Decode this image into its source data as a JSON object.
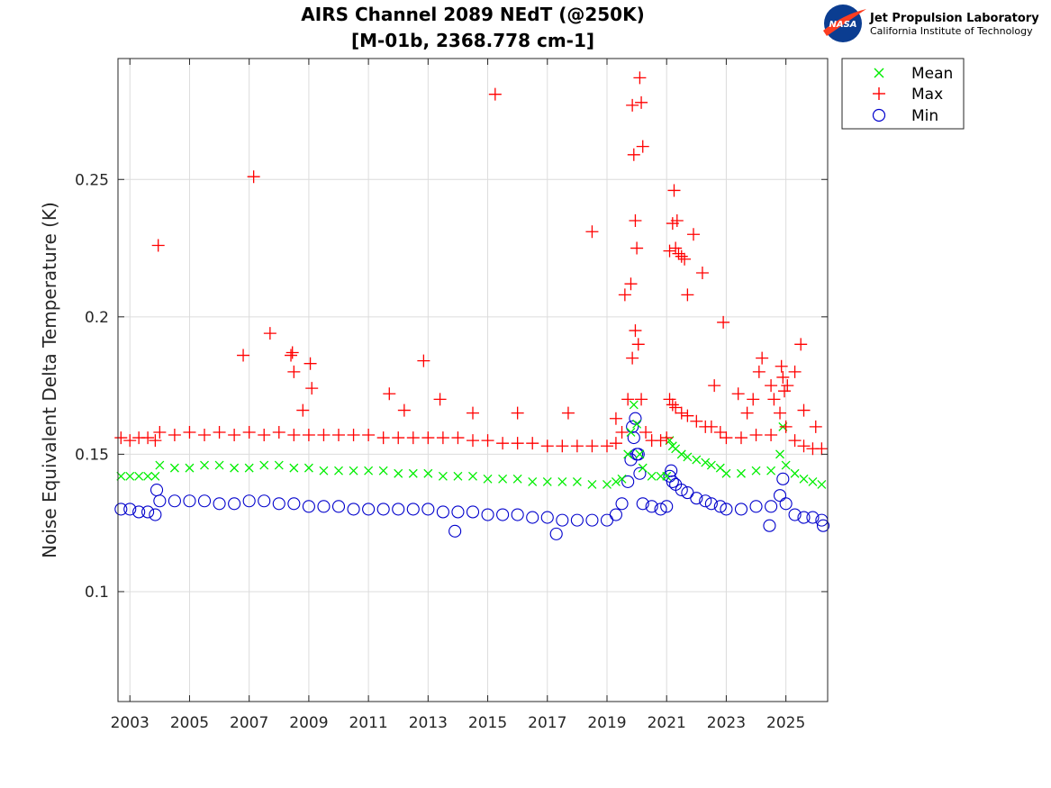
{
  "logo": {
    "name": "Jet Propulsion Laboratory",
    "subtitle": "California Institute of Technology",
    "badge_text": "NASA"
  },
  "chart_data": {
    "type": "scatter",
    "title": "AIRS Channel 2089 NEdT (@250K)",
    "subtitle": "[M-01b, 2368.778 cm-1]",
    "xlabel": "",
    "ylabel": "Noise Equivalent Delta Temperature (K)",
    "xlim": [
      2002.6,
      2026.4
    ],
    "ylim": [
      0.06,
      0.294
    ],
    "x_ticks": [
      2003,
      2005,
      2007,
      2009,
      2011,
      2013,
      2015,
      2017,
      2019,
      2021,
      2023,
      2025
    ],
    "y_ticks": [
      0.1,
      0.15,
      0.2,
      0.25
    ],
    "y_tick_labels": [
      "0.1",
      "0.15",
      "0.2",
      "0.25"
    ],
    "grid": true,
    "legend_position": "outside-top-right",
    "colors": {
      "mean": "#00ee00",
      "max": "#ff0000",
      "min": "#0000cc"
    },
    "series": [
      {
        "name": "Mean",
        "marker": "x",
        "x": [
          2002.7,
          2003.0,
          2003.3,
          2003.6,
          2003.85,
          2004.0,
          2004.5,
          2005.0,
          2005.5,
          2006.0,
          2006.5,
          2007.0,
          2007.5,
          2008.0,
          2008.5,
          2009.0,
          2009.5,
          2010.0,
          2010.5,
          2011.0,
          2011.5,
          2012.0,
          2012.5,
          2013.0,
          2013.5,
          2014.0,
          2014.5,
          2015.0,
          2015.5,
          2016.0,
          2016.5,
          2017.0,
          2017.5,
          2018.0,
          2018.5,
          2019.0,
          2019.3,
          2019.5,
          2019.7,
          2019.8,
          2019.9,
          2020.0,
          2020.1,
          2020.2,
          2020.5,
          2020.8,
          2021.0,
          2021.1,
          2021.2,
          2021.3,
          2021.5,
          2021.7,
          2022.0,
          2022.3,
          2022.5,
          2022.8,
          2023.0,
          2023.5,
          2024.0,
          2024.5,
          2024.8,
          2024.9,
          2025.0,
          2025.3,
          2025.6,
          2025.9,
          2026.2
        ],
        "y": [
          0.142,
          0.142,
          0.142,
          0.142,
          0.142,
          0.146,
          0.145,
          0.145,
          0.146,
          0.146,
          0.145,
          0.145,
          0.146,
          0.146,
          0.145,
          0.145,
          0.144,
          0.144,
          0.144,
          0.144,
          0.144,
          0.143,
          0.143,
          0.143,
          0.142,
          0.142,
          0.142,
          0.141,
          0.141,
          0.141,
          0.14,
          0.14,
          0.14,
          0.14,
          0.139,
          0.139,
          0.14,
          0.141,
          0.15,
          0.158,
          0.168,
          0.161,
          0.15,
          0.145,
          0.142,
          0.142,
          0.142,
          0.155,
          0.153,
          0.152,
          0.15,
          0.149,
          0.148,
          0.147,
          0.146,
          0.145,
          0.143,
          0.143,
          0.144,
          0.144,
          0.15,
          0.16,
          0.146,
          0.143,
          0.141,
          0.14,
          0.139
        ]
      },
      {
        "name": "Max",
        "marker": "+",
        "x": [
          2002.7,
          2003.0,
          2003.3,
          2003.6,
          2003.85,
          2004.0,
          2004.5,
          2005.0,
          2005.5,
          2006.0,
          2006.5,
          2007.0,
          2007.5,
          2008.0,
          2008.5,
          2009.0,
          2009.5,
          2010.0,
          2010.5,
          2011.0,
          2011.5,
          2012.0,
          2012.5,
          2013.0,
          2013.5,
          2014.0,
          2014.5,
          2015.0,
          2015.5,
          2016.0,
          2016.5,
          2017.0,
          2017.5,
          2018.0,
          2018.5,
          2019.0,
          2019.3,
          2019.5,
          2019.7,
          2019.85,
          2019.95,
          2020.05,
          2020.15,
          2020.3,
          2020.5,
          2020.8,
          2021.0,
          2021.1,
          2021.2,
          2021.3,
          2021.5,
          2021.7,
          2022.0,
          2022.3,
          2022.5,
          2022.8,
          2023.0,
          2023.5,
          2024.0,
          2024.5,
          2024.8,
          2024.9,
          2025.0,
          2025.3,
          2025.6,
          2025.9,
          2026.2,
          2003.95,
          2006.8,
          2007.15,
          2007.7,
          2008.4,
          2008.45,
          2008.5,
          2008.8,
          2009.05,
          2009.1,
          2011.7,
          2012.2,
          2012.85,
          2013.4,
          2014.5,
          2015.25,
          2016.0,
          2017.7,
          2018.5,
          2019.3,
          2019.6,
          2019.8,
          2019.85,
          2019.9,
          2019.95,
          2020.0,
          2020.1,
          2020.15,
          2020.2,
          2021.1,
          2021.2,
          2021.25,
          2021.3,
          2021.35,
          2021.4,
          2021.5,
          2021.6,
          2021.7,
          2021.9,
          2022.2,
          2022.6,
          2022.9,
          2023.4,
          2023.7,
          2023.9,
          2024.1,
          2024.2,
          2024.5,
          2024.6,
          2024.85,
          2024.95,
          2025.05,
          2025.3,
          2025.5,
          2025.6,
          2026.0
        ],
        "y": [
          0.156,
          0.155,
          0.156,
          0.156,
          0.155,
          0.158,
          0.157,
          0.158,
          0.157,
          0.158,
          0.157,
          0.158,
          0.157,
          0.158,
          0.157,
          0.157,
          0.157,
          0.157,
          0.157,
          0.157,
          0.156,
          0.156,
          0.156,
          0.156,
          0.156,
          0.156,
          0.155,
          0.155,
          0.154,
          0.154,
          0.154,
          0.153,
          0.153,
          0.153,
          0.153,
          0.153,
          0.154,
          0.158,
          0.17,
          0.185,
          0.195,
          0.19,
          0.17,
          0.158,
          0.155,
          0.155,
          0.156,
          0.17,
          0.168,
          0.167,
          0.165,
          0.164,
          0.162,
          0.16,
          0.16,
          0.158,
          0.156,
          0.156,
          0.157,
          0.157,
          0.165,
          0.178,
          0.16,
          0.155,
          0.153,
          0.152,
          0.152,
          0.226,
          0.186,
          0.251,
          0.194,
          0.186,
          0.187,
          0.18,
          0.166,
          0.183,
          0.174,
          0.172,
          0.166,
          0.184,
          0.17,
          0.165,
          0.281,
          0.165,
          0.165,
          0.231,
          0.163,
          0.208,
          0.212,
          0.277,
          0.259,
          0.235,
          0.225,
          0.287,
          0.278,
          0.262,
          0.224,
          0.234,
          0.246,
          0.225,
          0.235,
          0.223,
          0.222,
          0.221,
          0.208,
          0.23,
          0.216,
          0.175,
          0.198,
          0.172,
          0.165,
          0.17,
          0.18,
          0.185,
          0.175,
          0.17,
          0.182,
          0.173,
          0.175,
          0.18,
          0.19,
          0.166,
          0.16
        ]
      },
      {
        "name": "Min",
        "marker": "o",
        "x": [
          2002.7,
          2003.0,
          2003.3,
          2003.6,
          2003.85,
          2004.0,
          2004.5,
          2005.0,
          2005.5,
          2006.0,
          2006.5,
          2007.0,
          2007.5,
          2008.0,
          2008.5,
          2009.0,
          2009.5,
          2010.0,
          2010.5,
          2011.0,
          2011.5,
          2012.0,
          2012.5,
          2013.0,
          2013.5,
          2014.0,
          2014.5,
          2015.0,
          2015.5,
          2016.0,
          2016.5,
          2017.0,
          2017.5,
          2018.0,
          2018.5,
          2019.0,
          2019.3,
          2019.5,
          2019.7,
          2019.8,
          2019.9,
          2020.0,
          2020.1,
          2020.2,
          2020.5,
          2020.8,
          2021.0,
          2021.1,
          2021.2,
          2021.3,
          2021.5,
          2021.7,
          2022.0,
          2022.3,
          2022.5,
          2022.8,
          2023.0,
          2023.5,
          2024.0,
          2024.5,
          2024.8,
          2024.9,
          2025.0,
          2025.3,
          2025.6,
          2025.9,
          2026.2,
          2003.9,
          2013.9,
          2017.3,
          2019.85,
          2019.95,
          2020.05,
          2021.15,
          2024.45,
          2026.25
        ],
        "y": [
          0.13,
          0.13,
          0.129,
          0.129,
          0.128,
          0.133,
          0.133,
          0.133,
          0.133,
          0.132,
          0.132,
          0.133,
          0.133,
          0.132,
          0.132,
          0.131,
          0.131,
          0.131,
          0.13,
          0.13,
          0.13,
          0.13,
          0.13,
          0.13,
          0.129,
          0.129,
          0.129,
          0.128,
          0.128,
          0.128,
          0.127,
          0.127,
          0.126,
          0.126,
          0.126,
          0.126,
          0.128,
          0.132,
          0.14,
          0.148,
          0.156,
          0.15,
          0.143,
          0.132,
          0.131,
          0.13,
          0.131,
          0.142,
          0.14,
          0.139,
          0.137,
          0.136,
          0.134,
          0.133,
          0.132,
          0.131,
          0.13,
          0.13,
          0.131,
          0.131,
          0.135,
          0.141,
          0.132,
          0.128,
          0.127,
          0.127,
          0.126,
          0.137,
          0.122,
          0.121,
          0.16,
          0.163,
          0.15,
          0.144,
          0.124,
          0.124
        ]
      }
    ]
  }
}
